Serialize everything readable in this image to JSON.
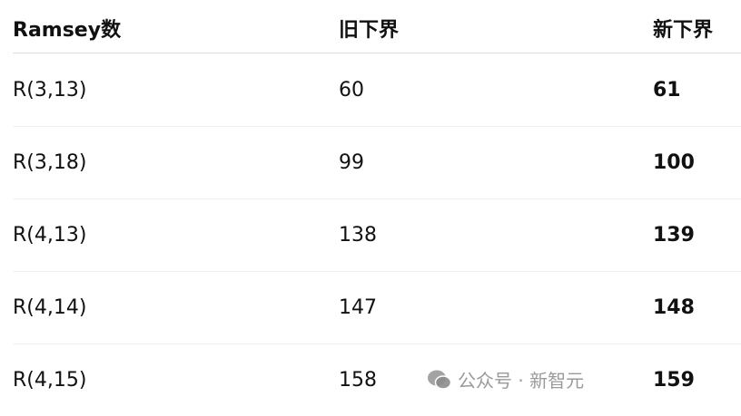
{
  "table": {
    "headers": [
      "Ramsey数",
      "旧下界",
      "新下界"
    ],
    "rows": [
      {
        "number": "R(3,13)",
        "old": "60",
        "new": "61"
      },
      {
        "number": "R(3,18)",
        "old": "99",
        "new": "100"
      },
      {
        "number": "R(4,13)",
        "old": "138",
        "new": "139"
      },
      {
        "number": "R(4,14)",
        "old": "147",
        "new": "148"
      },
      {
        "number": "R(4,15)",
        "old": "158",
        "new": "159"
      }
    ]
  },
  "watermark": {
    "icon": "wechat-icon",
    "text": "公众号 · 新智元"
  }
}
